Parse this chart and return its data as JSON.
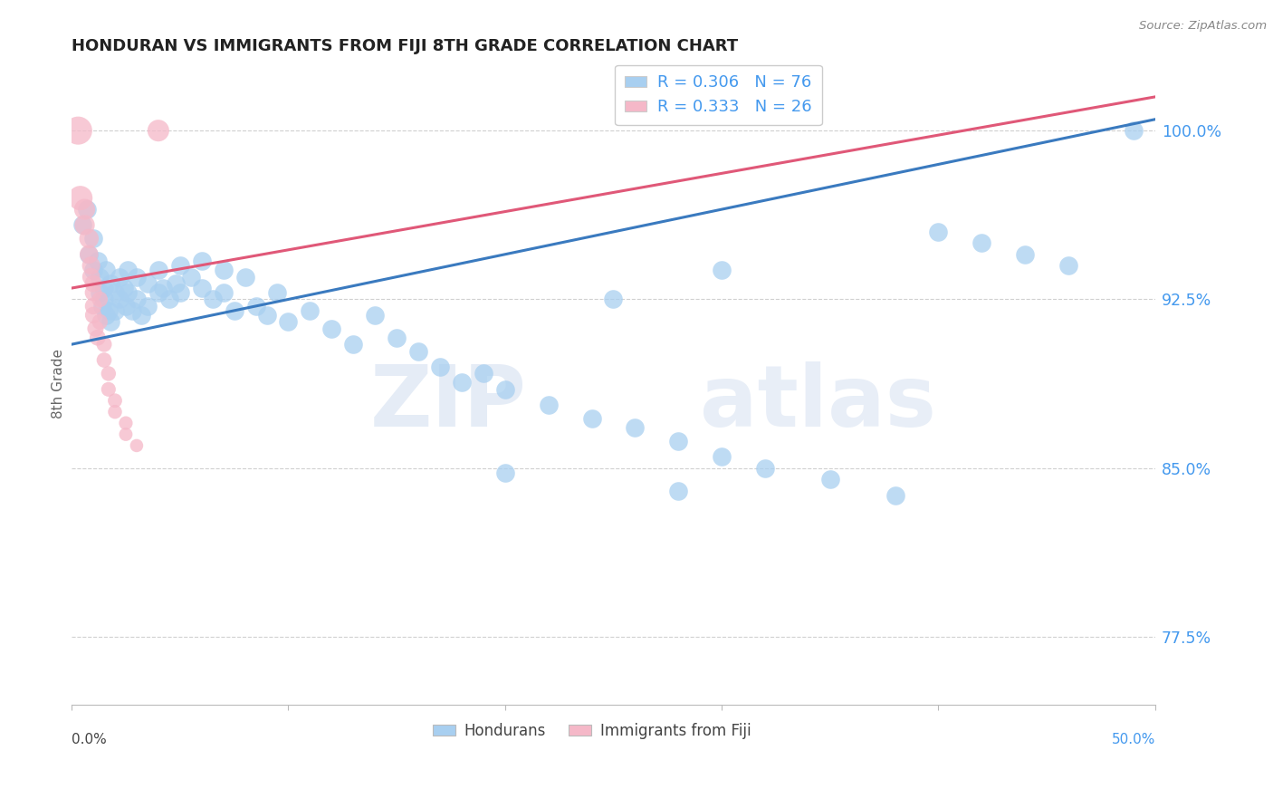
{
  "title": "HONDURAN VS IMMIGRANTS FROM FIJI 8TH GRADE CORRELATION CHART",
  "source": "Source: ZipAtlas.com",
  "ylabel": "8th Grade",
  "yticks": [
    77.5,
    85.0,
    92.5,
    100.0
  ],
  "xlim": [
    0.0,
    0.5
  ],
  "ylim": [
    74.5,
    103.0
  ],
  "blue_R": 0.306,
  "blue_N": 76,
  "pink_R": 0.333,
  "pink_N": 26,
  "legend_blue": "Hondurans",
  "legend_pink": "Immigrants from Fiji",
  "blue_color": "#a8cff0",
  "pink_color": "#f5b8c8",
  "blue_line_color": "#3a7abf",
  "pink_line_color": "#e05878",
  "blue_scatter": [
    [
      0.005,
      95.8
    ],
    [
      0.007,
      96.5
    ],
    [
      0.008,
      94.5
    ],
    [
      0.01,
      95.2
    ],
    [
      0.01,
      93.8
    ],
    [
      0.012,
      94.2
    ],
    [
      0.013,
      93.5
    ],
    [
      0.013,
      92.8
    ],
    [
      0.014,
      92.2
    ],
    [
      0.015,
      93.0
    ],
    [
      0.015,
      92.5
    ],
    [
      0.016,
      93.8
    ],
    [
      0.016,
      91.8
    ],
    [
      0.017,
      92.0
    ],
    [
      0.018,
      91.5
    ],
    [
      0.018,
      93.2
    ],
    [
      0.02,
      92.8
    ],
    [
      0.02,
      92.0
    ],
    [
      0.022,
      93.5
    ],
    [
      0.022,
      92.5
    ],
    [
      0.024,
      93.0
    ],
    [
      0.025,
      92.2
    ],
    [
      0.026,
      93.8
    ],
    [
      0.026,
      92.8
    ],
    [
      0.028,
      92.0
    ],
    [
      0.03,
      93.5
    ],
    [
      0.03,
      92.5
    ],
    [
      0.032,
      91.8
    ],
    [
      0.035,
      93.2
    ],
    [
      0.035,
      92.2
    ],
    [
      0.04,
      93.8
    ],
    [
      0.04,
      92.8
    ],
    [
      0.042,
      93.0
    ],
    [
      0.045,
      92.5
    ],
    [
      0.048,
      93.2
    ],
    [
      0.05,
      94.0
    ],
    [
      0.05,
      92.8
    ],
    [
      0.055,
      93.5
    ],
    [
      0.06,
      94.2
    ],
    [
      0.06,
      93.0
    ],
    [
      0.065,
      92.5
    ],
    [
      0.07,
      93.8
    ],
    [
      0.07,
      92.8
    ],
    [
      0.075,
      92.0
    ],
    [
      0.08,
      93.5
    ],
    [
      0.085,
      92.2
    ],
    [
      0.09,
      91.8
    ],
    [
      0.095,
      92.8
    ],
    [
      0.1,
      91.5
    ],
    [
      0.11,
      92.0
    ],
    [
      0.12,
      91.2
    ],
    [
      0.13,
      90.5
    ],
    [
      0.14,
      91.8
    ],
    [
      0.15,
      90.8
    ],
    [
      0.16,
      90.2
    ],
    [
      0.17,
      89.5
    ],
    [
      0.18,
      88.8
    ],
    [
      0.19,
      89.2
    ],
    [
      0.2,
      88.5
    ],
    [
      0.22,
      87.8
    ],
    [
      0.24,
      87.2
    ],
    [
      0.26,
      86.8
    ],
    [
      0.28,
      86.2
    ],
    [
      0.3,
      85.5
    ],
    [
      0.32,
      85.0
    ],
    [
      0.35,
      84.5
    ],
    [
      0.38,
      83.8
    ],
    [
      0.4,
      95.5
    ],
    [
      0.42,
      95.0
    ],
    [
      0.44,
      94.5
    ],
    [
      0.46,
      94.0
    ],
    [
      0.28,
      84.0
    ],
    [
      0.3,
      93.8
    ],
    [
      0.25,
      92.5
    ],
    [
      0.2,
      84.8
    ],
    [
      0.49,
      100.0
    ]
  ],
  "pink_scatter": [
    [
      0.003,
      100.0
    ],
    [
      0.004,
      97.0
    ],
    [
      0.006,
      96.5
    ],
    [
      0.006,
      95.8
    ],
    [
      0.008,
      95.2
    ],
    [
      0.008,
      94.5
    ],
    [
      0.009,
      94.0
    ],
    [
      0.009,
      93.5
    ],
    [
      0.01,
      93.2
    ],
    [
      0.01,
      92.8
    ],
    [
      0.01,
      92.2
    ],
    [
      0.01,
      91.8
    ],
    [
      0.011,
      91.2
    ],
    [
      0.012,
      90.8
    ],
    [
      0.013,
      92.5
    ],
    [
      0.013,
      91.5
    ],
    [
      0.015,
      90.5
    ],
    [
      0.015,
      89.8
    ],
    [
      0.017,
      89.2
    ],
    [
      0.017,
      88.5
    ],
    [
      0.02,
      88.0
    ],
    [
      0.02,
      87.5
    ],
    [
      0.025,
      87.0
    ],
    [
      0.025,
      86.5
    ],
    [
      0.03,
      86.0
    ],
    [
      0.04,
      100.0
    ]
  ],
  "grid_color": "#d0d0d0",
  "watermark_zip": "ZIP",
  "watermark_atlas": "atlas",
  "blue_trend_x": [
    0.0,
    0.5
  ],
  "blue_trend_y": [
    90.5,
    100.5
  ],
  "pink_trend_x": [
    0.0,
    0.5
  ],
  "pink_trend_y": [
    93.0,
    101.5
  ]
}
